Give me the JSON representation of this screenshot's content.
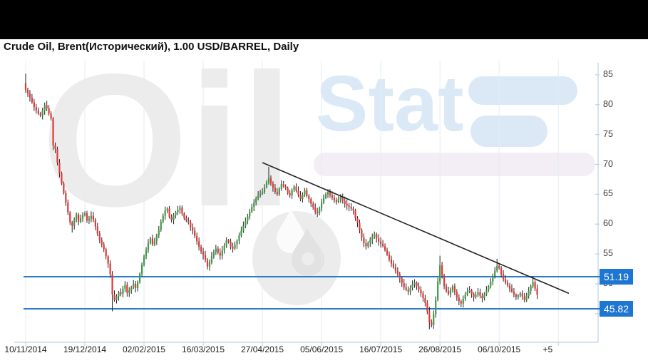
{
  "top_bar": {
    "color": "#000000"
  },
  "chart_data": {
    "type": "candlestick",
    "title": "Crude Oil, Brent(Исторический), 1.00 USD/BARREL, Daily",
    "symbol": "Crude Oil, Brent",
    "interval": "Daily",
    "unit": "1.00 USD/BARREL",
    "watermark": {
      "word1": "Oil",
      "word2": "Stat"
    },
    "y_axis": {
      "ticks": [
        85,
        80,
        75,
        70,
        65,
        60,
        55,
        50,
        45
      ],
      "range": [
        40.2,
        87.0
      ]
    },
    "x_axis": {
      "labels": [
        {
          "text": "10/11/2014",
          "day": 0
        },
        {
          "text": "19/12/2014",
          "day": 28
        },
        {
          "text": "02/02/2015",
          "day": 56
        },
        {
          "text": "16/03/2015",
          "day": 84
        },
        {
          "text": "27/04/2015",
          "day": 112
        },
        {
          "text": "05/06/2015",
          "day": 140
        },
        {
          "text": "16/07/2015",
          "day": 168
        },
        {
          "text": "26/08/2015",
          "day": 196
        },
        {
          "text": "06/10/2015",
          "day": 224
        },
        {
          "text": "+5",
          "day": 247
        }
      ],
      "gridline_days": [
        0,
        28,
        56,
        84,
        112,
        140,
        168,
        196,
        224,
        252
      ]
    },
    "support_levels": [
      {
        "value": 51.19,
        "label": "51.19"
      },
      {
        "value": 45.82,
        "label": "45.82"
      }
    ],
    "trendline": {
      "from": {
        "day": 112,
        "price": 70.3
      },
      "to": {
        "day": 257,
        "price": 48.4
      }
    },
    "first_open": 83.6,
    "closes": [
      82.5,
      81.9,
      81.2,
      80.4,
      79.6,
      79.0,
      78.5,
      78.2,
      79.0,
      79.9,
      79.4,
      78.5,
      77.7,
      73.2,
      72.6,
      70.3,
      68.5,
      66.8,
      65.2,
      63.6,
      61.9,
      60.3,
      59.7,
      60.8,
      61.6,
      60.4,
      61.0,
      61.5,
      61.8,
      60.6,
      60.9,
      61.4,
      60.7,
      59.6,
      58.4,
      57.3,
      56.6,
      55.8,
      54.6,
      53.4,
      51.6,
      48.2,
      47.3,
      47.9,
      48.6,
      48.3,
      49.2,
      49.8,
      48.5,
      48.9,
      49.4,
      50.0,
      49.3,
      50.3,
      51.7,
      53.2,
      54.6,
      55.6,
      56.8,
      57.6,
      56.6,
      57.2,
      58.1,
      59.0,
      60.4,
      61.4,
      62.3,
      62.6,
      61.2,
      60.7,
      61.5,
      62.0,
      62.4,
      62.8,
      61.8,
      61.0,
      60.6,
      60.3,
      59.5,
      58.9,
      58.0,
      57.1,
      56.2,
      55.4,
      54.8,
      54.0,
      52.9,
      53.6,
      54.6,
      55.3,
      55.9,
      55.2,
      54.7,
      55.6,
      56.4,
      57.3,
      57.0,
      56.2,
      55.9,
      56.6,
      57.2,
      58.1,
      58.9,
      59.7,
      60.5,
      61.3,
      62.1,
      62.9,
      63.6,
      64.3,
      64.8,
      65.1,
      65.4,
      66.2,
      67.0,
      67.7,
      66.8,
      66.1,
      65.4,
      65.0,
      65.9,
      66.7,
      66.3,
      66.0,
      65.2,
      64.8,
      65.7,
      66.3,
      65.6,
      64.9,
      64.2,
      64.9,
      65.7,
      64.7,
      64.2,
      63.4,
      62.8,
      62.1,
      61.8,
      62.7,
      63.6,
      64.4,
      65.0,
      65.4,
      64.8,
      64.4,
      64.0,
      63.7,
      64.2,
      64.6,
      63.9,
      63.4,
      63.1,
      62.9,
      62.6,
      62.3,
      61.0,
      60.2,
      59.0,
      57.8,
      56.8,
      56.3,
      56.9,
      57.4,
      57.9,
      58.3,
      57.6,
      57.1,
      56.7,
      56.3,
      55.6,
      54.9,
      54.1,
      53.4,
      52.8,
      52.2,
      51.6,
      50.9,
      50.1,
      49.4,
      49.0,
      48.7,
      49.3,
      49.9,
      50.2,
      49.6,
      49.0,
      48.4,
      47.6,
      46.8,
      45.4,
      43.6,
      43.1,
      44.9,
      47.3,
      50.4,
      53.1,
      51.4,
      49.6,
      48.8,
      48.3,
      49.0,
      49.6,
      48.6,
      47.7,
      47.1,
      46.7,
      47.5,
      48.2,
      48.7,
      48.9,
      48.3,
      47.8,
      48.1,
      48.6,
      48.0,
      47.6,
      48.2,
      48.9,
      49.6,
      50.4,
      51.3,
      52.2,
      53.0,
      52.6,
      51.6,
      50.8,
      50.2,
      49.7,
      49.2,
      48.7,
      48.2,
      47.8,
      48.1,
      48.4,
      47.9,
      47.3,
      48.0,
      48.8,
      49.6,
      50.3,
      49.2,
      48.2
    ],
    "wick_overrides": {
      "0": {
        "high": 85.2
      },
      "13": {
        "low": 72.4
      },
      "22": {
        "low": 58.6
      },
      "41": {
        "low": 45.4
      },
      "86": {
        "low": 52.4
      },
      "115": {
        "high": 69.6
      },
      "138": {
        "low": 61.2
      },
      "161": {
        "low": 55.7
      },
      "191": {
        "low": 42.4
      },
      "196": {
        "high": 54.7
      },
      "223": {
        "high": 54.2
      },
      "236": {
        "low": 46.9
      },
      "240": {
        "high": 51.3
      }
    },
    "colors": {
      "up": "#3d9c40",
      "down": "#e53535",
      "wick": "#222222",
      "support_line": "#2a7cc4",
      "label_box": "#1d76d2",
      "label_text": "#ffffff",
      "trendline": "#222222",
      "grid": "#e3ecf5",
      "axis": "#bccfe3",
      "tick_text": "#3c3c3c"
    }
  }
}
